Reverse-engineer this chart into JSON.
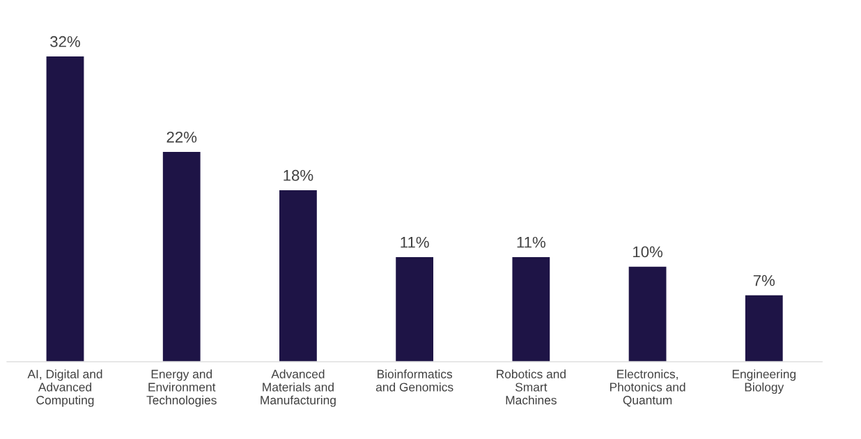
{
  "chart_data": {
    "type": "bar",
    "categories": [
      "AI, Digital and\nAdvanced\nComputing",
      "Energy and\nEnvironment\nTechnologies",
      "Advanced\nMaterials and\nManufacturing",
      "Bioinformatics\nand Genomics",
      "Robotics and\nSmart\nMachines",
      "Electronics,\nPhotonics and\nQuantum",
      "Engineering\nBiology"
    ],
    "values": [
      32,
      22,
      18,
      11,
      11,
      10,
      7
    ],
    "value_labels": [
      "32%",
      "22%",
      "18%",
      "11%",
      "11%",
      "10%",
      "7%"
    ],
    "color": "#1e1446",
    "grid": false,
    "legend": false
  }
}
